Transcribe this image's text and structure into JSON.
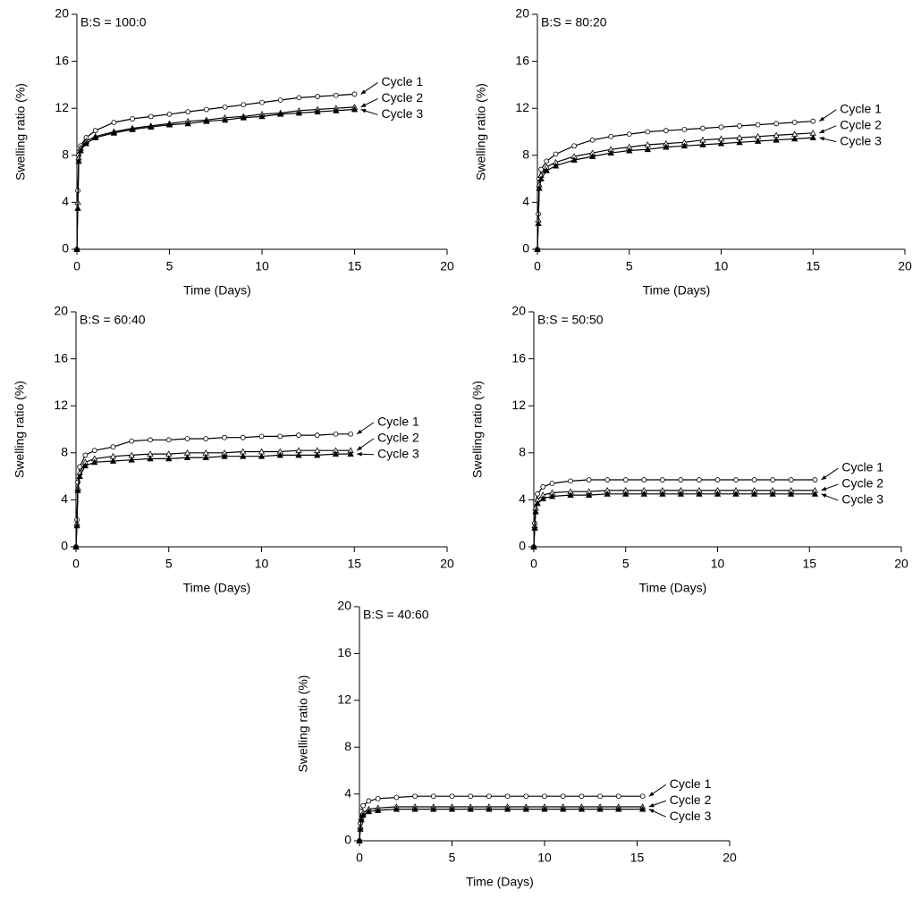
{
  "chart_data": [
    {
      "type": "line",
      "title": "B:S = 100:0",
      "xlabel": "Time (Days)",
      "ylabel": "Swelling ratio (%)",
      "x": [
        0,
        0.05,
        0.1,
        0.2,
        0.5,
        1,
        2,
        3,
        4,
        5,
        6,
        7,
        8,
        9,
        10,
        11,
        12,
        13,
        14,
        15
      ],
      "xlim": [
        0,
        20
      ],
      "ylim": [
        0,
        20
      ],
      "xticks": [
        0,
        5,
        10,
        15,
        20
      ],
      "yticks": [
        0,
        4,
        8,
        12,
        16,
        20
      ],
      "series": [
        {
          "name": "Cycle 1",
          "color": "#000000",
          "marker": "circle",
          "values": [
            0,
            5,
            8,
            8.8,
            9.5,
            10.1,
            10.8,
            11.1,
            11.3,
            11.5,
            11.7,
            11.9,
            12.1,
            12.3,
            12.5,
            12.7,
            12.9,
            13.0,
            13.1,
            13.2
          ]
        },
        {
          "name": "Cycle 2",
          "color": "#000000",
          "marker": "triangle",
          "values": [
            0,
            4,
            7.8,
            8.6,
            9.2,
            9.6,
            10.0,
            10.3,
            10.5,
            10.7,
            10.9,
            11.0,
            11.2,
            11.3,
            11.5,
            11.6,
            11.8,
            11.9,
            12.0,
            12.1
          ]
        },
        {
          "name": "Cycle 3",
          "color": "#000000",
          "marker": "filled-triangle",
          "values": [
            0,
            3.5,
            7.5,
            8.4,
            9.0,
            9.5,
            9.9,
            10.2,
            10.4,
            10.6,
            10.7,
            10.9,
            11.0,
            11.2,
            11.3,
            11.5,
            11.6,
            11.7,
            11.8,
            11.9
          ]
        }
      ]
    },
    {
      "type": "line",
      "title": "B:S = 80:20",
      "xlabel": "Time (Days)",
      "ylabel": "Swelling ratio (%)",
      "x": [
        0,
        0.05,
        0.1,
        0.2,
        0.5,
        1,
        2,
        3,
        4,
        5,
        6,
        7,
        8,
        9,
        10,
        11,
        12,
        13,
        14,
        15
      ],
      "xlim": [
        0,
        20
      ],
      "ylim": [
        0,
        20
      ],
      "xticks": [
        0,
        5,
        10,
        15,
        20
      ],
      "yticks": [
        0,
        4,
        8,
        12,
        16,
        20
      ],
      "series": [
        {
          "name": "Cycle 1",
          "color": "#000000",
          "marker": "circle",
          "values": [
            0,
            3,
            6,
            6.8,
            7.5,
            8.1,
            8.8,
            9.3,
            9.6,
            9.8,
            10.0,
            10.1,
            10.2,
            10.3,
            10.4,
            10.5,
            10.6,
            10.7,
            10.8,
            10.9
          ]
        },
        {
          "name": "Cycle 2",
          "color": "#000000",
          "marker": "triangle",
          "values": [
            0,
            2.5,
            5.5,
            6.3,
            7.0,
            7.4,
            7.9,
            8.2,
            8.5,
            8.7,
            8.9,
            9.0,
            9.1,
            9.3,
            9.4,
            9.5,
            9.6,
            9.7,
            9.8,
            9.9
          ]
        },
        {
          "name": "Cycle 3",
          "color": "#000000",
          "marker": "filled-triangle",
          "values": [
            0,
            2.2,
            5.2,
            6.0,
            6.7,
            7.1,
            7.6,
            7.9,
            8.2,
            8.4,
            8.5,
            8.7,
            8.8,
            8.9,
            9.0,
            9.1,
            9.2,
            9.3,
            9.4,
            9.5
          ]
        }
      ]
    },
    {
      "type": "line",
      "title": "B:S = 60:40",
      "xlabel": "Time (Days)",
      "ylabel": "Swelling ratio (%)",
      "x": [
        0,
        0.05,
        0.1,
        0.2,
        0.5,
        1,
        2,
        3,
        4,
        5,
        6,
        7,
        8,
        9,
        10,
        11,
        12,
        13,
        14,
        14.8
      ],
      "xlim": [
        0,
        20
      ],
      "ylim": [
        0,
        20
      ],
      "xticks": [
        0,
        5,
        10,
        15,
        20
      ],
      "yticks": [
        0,
        4,
        8,
        12,
        16,
        20
      ],
      "series": [
        {
          "name": "Cycle 1",
          "color": "#000000",
          "marker": "circle",
          "values": [
            0,
            2.3,
            5.5,
            6.8,
            7.8,
            8.2,
            8.5,
            9.0,
            9.1,
            9.1,
            9.2,
            9.2,
            9.3,
            9.3,
            9.4,
            9.4,
            9.5,
            9.5,
            9.6,
            9.6
          ]
        },
        {
          "name": "Cycle 2",
          "color": "#000000",
          "marker": "triangle",
          "values": [
            0,
            2,
            5,
            6.3,
            7.2,
            7.5,
            7.7,
            7.8,
            7.9,
            7.9,
            8.0,
            8.0,
            8.0,
            8.1,
            8.1,
            8.1,
            8.2,
            8.2,
            8.2,
            8.2
          ]
        },
        {
          "name": "Cycle 3",
          "color": "#000000",
          "marker": "filled-triangle",
          "values": [
            0,
            1.8,
            4.8,
            6.0,
            6.9,
            7.2,
            7.3,
            7.4,
            7.5,
            7.5,
            7.6,
            7.6,
            7.7,
            7.7,
            7.7,
            7.8,
            7.8,
            7.8,
            7.9,
            7.9
          ]
        }
      ]
    },
    {
      "type": "line",
      "title": "B:S = 50:50",
      "xlabel": "Time (Days)",
      "ylabel": "Swelling ratio (%)",
      "x": [
        0,
        0.05,
        0.1,
        0.2,
        0.5,
        1,
        2,
        3,
        4,
        5,
        6,
        7,
        8,
        9,
        10,
        11,
        12,
        13,
        14,
        15.3
      ],
      "xlim": [
        0,
        20
      ],
      "ylim": [
        0,
        20
      ],
      "xticks": [
        0,
        5,
        10,
        15,
        20
      ],
      "yticks": [
        0,
        4,
        8,
        12,
        16,
        20
      ],
      "series": [
        {
          "name": "Cycle 1",
          "color": "#000000",
          "marker": "circle",
          "values": [
            0,
            2,
            3.8,
            4.5,
            5.1,
            5.4,
            5.6,
            5.7,
            5.7,
            5.7,
            5.7,
            5.7,
            5.7,
            5.7,
            5.7,
            5.7,
            5.7,
            5.7,
            5.7,
            5.7
          ]
        },
        {
          "name": "Cycle 2",
          "color": "#000000",
          "marker": "triangle",
          "values": [
            0,
            1.8,
            3.3,
            4.0,
            4.4,
            4.6,
            4.7,
            4.7,
            4.8,
            4.8,
            4.8,
            4.8,
            4.8,
            4.8,
            4.8,
            4.8,
            4.8,
            4.8,
            4.8,
            4.8
          ]
        },
        {
          "name": "Cycle 3",
          "color": "#000000",
          "marker": "filled-triangle",
          "values": [
            0,
            1.6,
            3.0,
            3.7,
            4.1,
            4.3,
            4.4,
            4.4,
            4.5,
            4.5,
            4.5,
            4.5,
            4.5,
            4.5,
            4.5,
            4.5,
            4.5,
            4.5,
            4.5,
            4.5
          ]
        }
      ]
    },
    {
      "type": "line",
      "title": "B:S = 40:60",
      "xlabel": "Time (Days)",
      "ylabel": "Swelling ratio (%)",
      "x": [
        0,
        0.05,
        0.1,
        0.2,
        0.5,
        1,
        2,
        3,
        4,
        5,
        6,
        7,
        8,
        9,
        10,
        11,
        12,
        13,
        14,
        15.3
      ],
      "xlim": [
        0,
        20
      ],
      "ylim": [
        0,
        20
      ],
      "xticks": [
        0,
        5,
        10,
        15,
        20
      ],
      "yticks": [
        0,
        4,
        8,
        12,
        16,
        20
      ],
      "series": [
        {
          "name": "Cycle 1",
          "color": "#000000",
          "marker": "circle",
          "values": [
            0,
            1.5,
            2.5,
            3.0,
            3.4,
            3.6,
            3.7,
            3.8,
            3.8,
            3.8,
            3.8,
            3.8,
            3.8,
            3.8,
            3.8,
            3.8,
            3.8,
            3.8,
            3.8,
            3.8
          ]
        },
        {
          "name": "Cycle 2",
          "color": "#000000",
          "marker": "triangle",
          "values": [
            0,
            1.2,
            2.0,
            2.4,
            2.7,
            2.8,
            2.9,
            2.9,
            2.9,
            2.9,
            2.9,
            2.9,
            2.9,
            2.9,
            2.9,
            2.9,
            2.9,
            2.9,
            2.9,
            2.9
          ]
        },
        {
          "name": "Cycle 3",
          "color": "#000000",
          "marker": "filled-triangle",
          "values": [
            0,
            1.0,
            1.8,
            2.2,
            2.5,
            2.6,
            2.7,
            2.7,
            2.7,
            2.7,
            2.7,
            2.7,
            2.7,
            2.7,
            2.7,
            2.7,
            2.7,
            2.7,
            2.7,
            2.7
          ]
        }
      ]
    }
  ]
}
